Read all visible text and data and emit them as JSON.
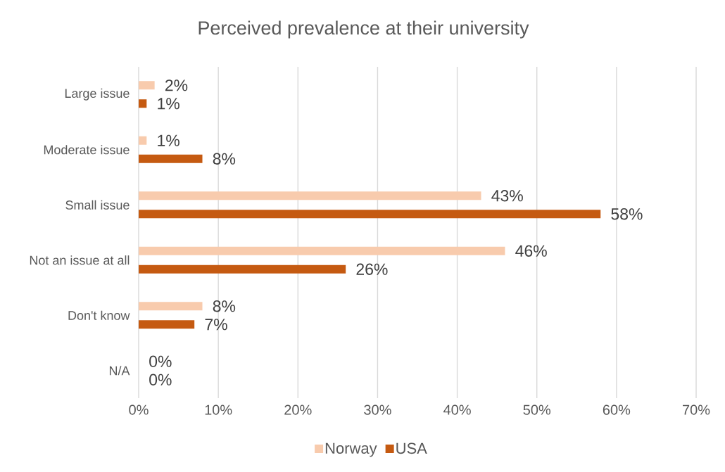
{
  "chart_data": {
    "type": "bar",
    "orientation": "horizontal",
    "title": "Perceived prevalence at their university",
    "categories": [
      "Large issue",
      "Moderate issue",
      "Small issue",
      "Not an issue at all",
      "Don't know",
      "N/A"
    ],
    "series": [
      {
        "name": "Norway",
        "color": "#f8cbad",
        "values": [
          2,
          1,
          43,
          46,
          8,
          0
        ],
        "value_labels": [
          "2%",
          "1%",
          "43%",
          "46%",
          "8%",
          "0%"
        ]
      },
      {
        "name": "USA",
        "color": "#c55a11",
        "values": [
          1,
          8,
          58,
          26,
          7,
          0
        ],
        "value_labels": [
          "1%",
          "8%",
          "58%",
          "26%",
          "7%",
          "0%"
        ]
      }
    ],
    "xlim": [
      0,
      70
    ],
    "xticks": [
      {
        "value": 0,
        "label": "0%"
      },
      {
        "value": 10,
        "label": "10%"
      },
      {
        "value": 20,
        "label": "20%"
      },
      {
        "value": 30,
        "label": "30%"
      },
      {
        "value": 40,
        "label": "40%"
      },
      {
        "value": 50,
        "label": "50%"
      },
      {
        "value": 60,
        "label": "60%"
      },
      {
        "value": 70,
        "label": "70%"
      }
    ],
    "grid": "x",
    "legend": "bottom"
  }
}
